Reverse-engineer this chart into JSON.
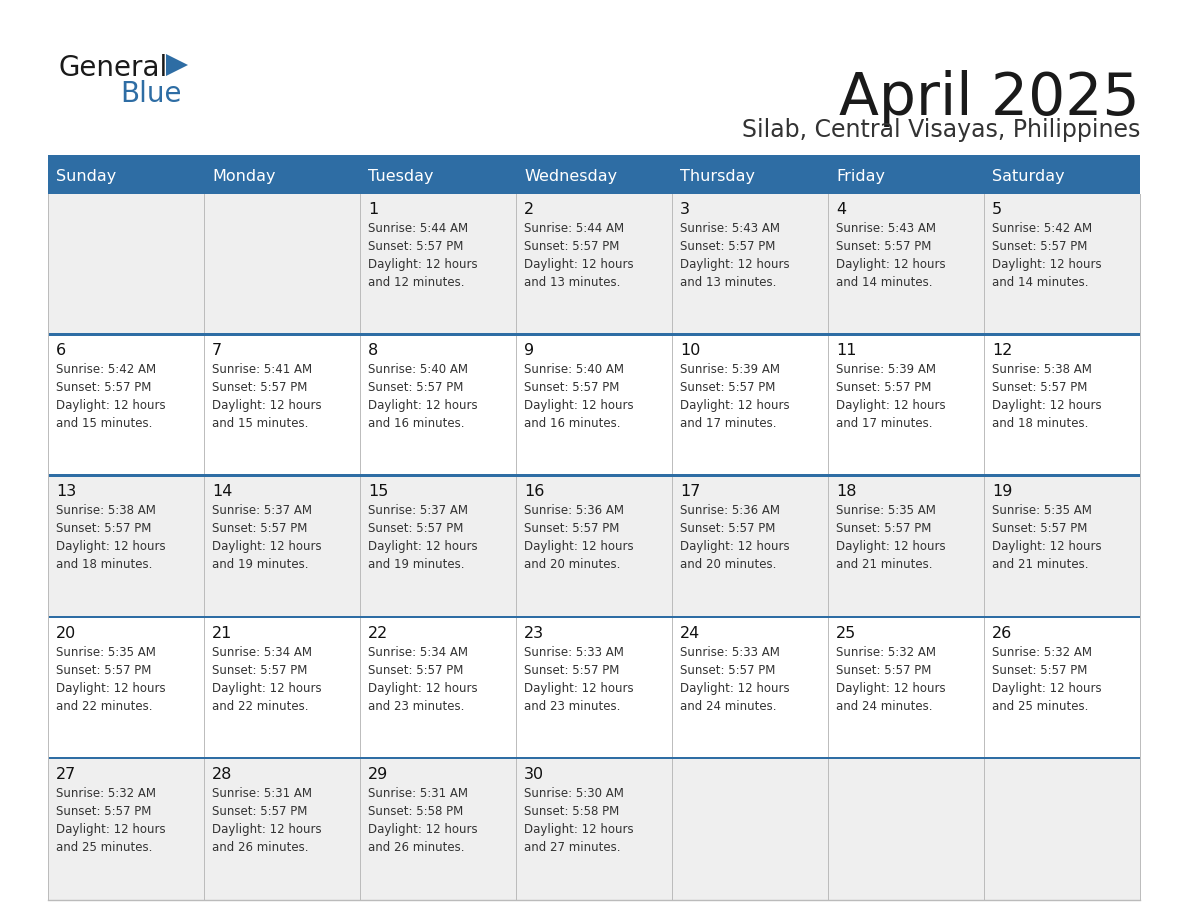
{
  "title": "April 2025",
  "subtitle": "Silab, Central Visayas, Philippines",
  "header_bg": "#2E6DA4",
  "header_text_color": "#FFFFFF",
  "cell_bg_even": "#EFEFEF",
  "cell_bg_odd": "#FFFFFF",
  "cell_text_color": "#333333",
  "day_number_color": "#111111",
  "grid_line_color": "#BBBBBB",
  "row_sep_color": "#2E6DA4",
  "days_of_week": [
    "Sunday",
    "Monday",
    "Tuesday",
    "Wednesday",
    "Thursday",
    "Friday",
    "Saturday"
  ],
  "logo_general_color": "#1a1a1a",
  "logo_blue_color": "#2E6DA4",
  "calendar": [
    [
      {
        "day": "",
        "sunrise": "",
        "sunset": "",
        "daylight": ""
      },
      {
        "day": "",
        "sunrise": "",
        "sunset": "",
        "daylight": ""
      },
      {
        "day": "1",
        "sunrise": "5:44 AM",
        "sunset": "5:57 PM",
        "daylight": "12 hours and 12 minutes."
      },
      {
        "day": "2",
        "sunrise": "5:44 AM",
        "sunset": "5:57 PM",
        "daylight": "12 hours and 13 minutes."
      },
      {
        "day": "3",
        "sunrise": "5:43 AM",
        "sunset": "5:57 PM",
        "daylight": "12 hours and 13 minutes."
      },
      {
        "day": "4",
        "sunrise": "5:43 AM",
        "sunset": "5:57 PM",
        "daylight": "12 hours and 14 minutes."
      },
      {
        "day": "5",
        "sunrise": "5:42 AM",
        "sunset": "5:57 PM",
        "daylight": "12 hours and 14 minutes."
      }
    ],
    [
      {
        "day": "6",
        "sunrise": "5:42 AM",
        "sunset": "5:57 PM",
        "daylight": "12 hours and 15 minutes."
      },
      {
        "day": "7",
        "sunrise": "5:41 AM",
        "sunset": "5:57 PM",
        "daylight": "12 hours and 15 minutes."
      },
      {
        "day": "8",
        "sunrise": "5:40 AM",
        "sunset": "5:57 PM",
        "daylight": "12 hours and 16 minutes."
      },
      {
        "day": "9",
        "sunrise": "5:40 AM",
        "sunset": "5:57 PM",
        "daylight": "12 hours and 16 minutes."
      },
      {
        "day": "10",
        "sunrise": "5:39 AM",
        "sunset": "5:57 PM",
        "daylight": "12 hours and 17 minutes."
      },
      {
        "day": "11",
        "sunrise": "5:39 AM",
        "sunset": "5:57 PM",
        "daylight": "12 hours and 17 minutes."
      },
      {
        "day": "12",
        "sunrise": "5:38 AM",
        "sunset": "5:57 PM",
        "daylight": "12 hours and 18 minutes."
      }
    ],
    [
      {
        "day": "13",
        "sunrise": "5:38 AM",
        "sunset": "5:57 PM",
        "daylight": "12 hours and 18 minutes."
      },
      {
        "day": "14",
        "sunrise": "5:37 AM",
        "sunset": "5:57 PM",
        "daylight": "12 hours and 19 minutes."
      },
      {
        "day": "15",
        "sunrise": "5:37 AM",
        "sunset": "5:57 PM",
        "daylight": "12 hours and 19 minutes."
      },
      {
        "day": "16",
        "sunrise": "5:36 AM",
        "sunset": "5:57 PM",
        "daylight": "12 hours and 20 minutes."
      },
      {
        "day": "17",
        "sunrise": "5:36 AM",
        "sunset": "5:57 PM",
        "daylight": "12 hours and 20 minutes."
      },
      {
        "day": "18",
        "sunrise": "5:35 AM",
        "sunset": "5:57 PM",
        "daylight": "12 hours and 21 minutes."
      },
      {
        "day": "19",
        "sunrise": "5:35 AM",
        "sunset": "5:57 PM",
        "daylight": "12 hours and 21 minutes."
      }
    ],
    [
      {
        "day": "20",
        "sunrise": "5:35 AM",
        "sunset": "5:57 PM",
        "daylight": "12 hours and 22 minutes."
      },
      {
        "day": "21",
        "sunrise": "5:34 AM",
        "sunset": "5:57 PM",
        "daylight": "12 hours and 22 minutes."
      },
      {
        "day": "22",
        "sunrise": "5:34 AM",
        "sunset": "5:57 PM",
        "daylight": "12 hours and 23 minutes."
      },
      {
        "day": "23",
        "sunrise": "5:33 AM",
        "sunset": "5:57 PM",
        "daylight": "12 hours and 23 minutes."
      },
      {
        "day": "24",
        "sunrise": "5:33 AM",
        "sunset": "5:57 PM",
        "daylight": "12 hours and 24 minutes."
      },
      {
        "day": "25",
        "sunrise": "5:32 AM",
        "sunset": "5:57 PM",
        "daylight": "12 hours and 24 minutes."
      },
      {
        "day": "26",
        "sunrise": "5:32 AM",
        "sunset": "5:57 PM",
        "daylight": "12 hours and 25 minutes."
      }
    ],
    [
      {
        "day": "27",
        "sunrise": "5:32 AM",
        "sunset": "5:57 PM",
        "daylight": "12 hours and 25 minutes."
      },
      {
        "day": "28",
        "sunrise": "5:31 AM",
        "sunset": "5:57 PM",
        "daylight": "12 hours and 26 minutes."
      },
      {
        "day": "29",
        "sunrise": "5:31 AM",
        "sunset": "5:58 PM",
        "daylight": "12 hours and 26 minutes."
      },
      {
        "day": "30",
        "sunrise": "5:30 AM",
        "sunset": "5:58 PM",
        "daylight": "12 hours and 27 minutes."
      },
      {
        "day": "",
        "sunrise": "",
        "sunset": "",
        "daylight": ""
      },
      {
        "day": "",
        "sunrise": "",
        "sunset": "",
        "daylight": ""
      },
      {
        "day": "",
        "sunrise": "",
        "sunset": "",
        "daylight": ""
      }
    ]
  ]
}
